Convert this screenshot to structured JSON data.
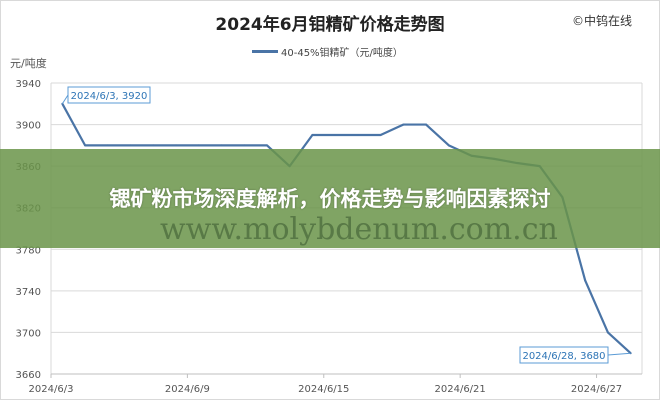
{
  "header": {
    "copyright": "©中钨在线"
  },
  "banner": {
    "title": "锶矿粉市场深度解析，价格走势与影响因素探讨"
  },
  "watermark": "www.molybdenum.com.cn",
  "chart_data": {
    "type": "line",
    "title": "2024年6月钼精矿价格走势图",
    "ylabel": "元/吨度",
    "xlabel": "",
    "ylim": [
      3660,
      3940
    ],
    "yticks": [
      3660,
      3700,
      3740,
      3780,
      3820,
      3860,
      3900,
      3940
    ],
    "xtick_labels": [
      "2024/6/3",
      "2024/6/9",
      "2024/6/15",
      "2024/6/21",
      "2024/6/27"
    ],
    "grid": "horizontal",
    "legend": "top-center",
    "line_color": "#4a74a6",
    "x": [
      "2024/6/3",
      "2024/6/4",
      "2024/6/5",
      "2024/6/6",
      "2024/6/7",
      "2024/6/8",
      "2024/6/9",
      "2024/6/10",
      "2024/6/11",
      "2024/6/12",
      "2024/6/13",
      "2024/6/14",
      "2024/6/15",
      "2024/6/16",
      "2024/6/17",
      "2024/6/18",
      "2024/6/19",
      "2024/6/20",
      "2024/6/21",
      "2024/6/22",
      "2024/6/23",
      "2024/6/24",
      "2024/6/25",
      "2024/6/26",
      "2024/6/27",
      "2024/6/28"
    ],
    "series": [
      {
        "name": "40-45%钼精矿（元/吨度）",
        "values": [
          3920,
          3880,
          3880,
          3880,
          3880,
          3880,
          3880,
          3880,
          3880,
          3880,
          3860,
          3890,
          3890,
          3890,
          3890,
          3900,
          3900,
          3880,
          3870,
          3867,
          3863,
          3860,
          3830,
          3750,
          3700,
          3680
        ]
      }
    ],
    "annotations": [
      "2024/6/3, 3920",
      "2024/6/28, 3680"
    ]
  }
}
